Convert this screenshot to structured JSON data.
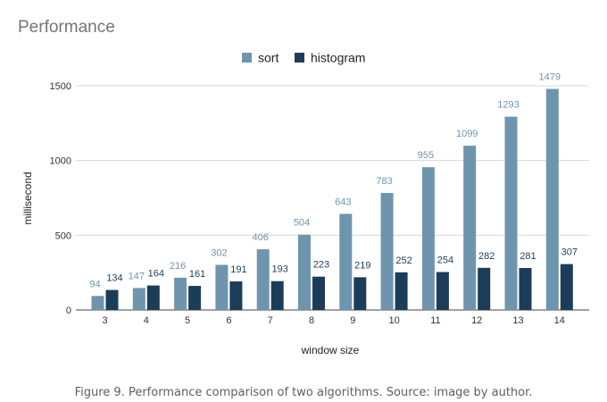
{
  "title": "Performance",
  "caption": "Figure 9. Performance comparison of two algorithms. Source: image by author.",
  "chart_data": {
    "type": "bar",
    "xlabel": "window size",
    "ylabel": "millisecond",
    "categories": [
      "3",
      "4",
      "5",
      "6",
      "7",
      "8",
      "9",
      "10",
      "11",
      "12",
      "13",
      "14"
    ],
    "series": [
      {
        "name": "sort",
        "color": "#6f95ae",
        "label_color": "#6f95ae",
        "values": [
          94,
          147,
          216,
          302,
          406,
          504,
          643,
          783,
          955,
          1099,
          1293,
          1479
        ]
      },
      {
        "name": "histogram",
        "color": "#1c3d5a",
        "label_color": "#1c3d5a",
        "values": [
          134,
          164,
          161,
          191,
          193,
          223,
          219,
          252,
          254,
          282,
          281,
          307
        ]
      }
    ],
    "ylim": [
      0,
      1500
    ],
    "yticks": [
      0,
      500,
      1000,
      1500
    ],
    "grid": true,
    "legend": "top-center",
    "data_labels": true
  }
}
